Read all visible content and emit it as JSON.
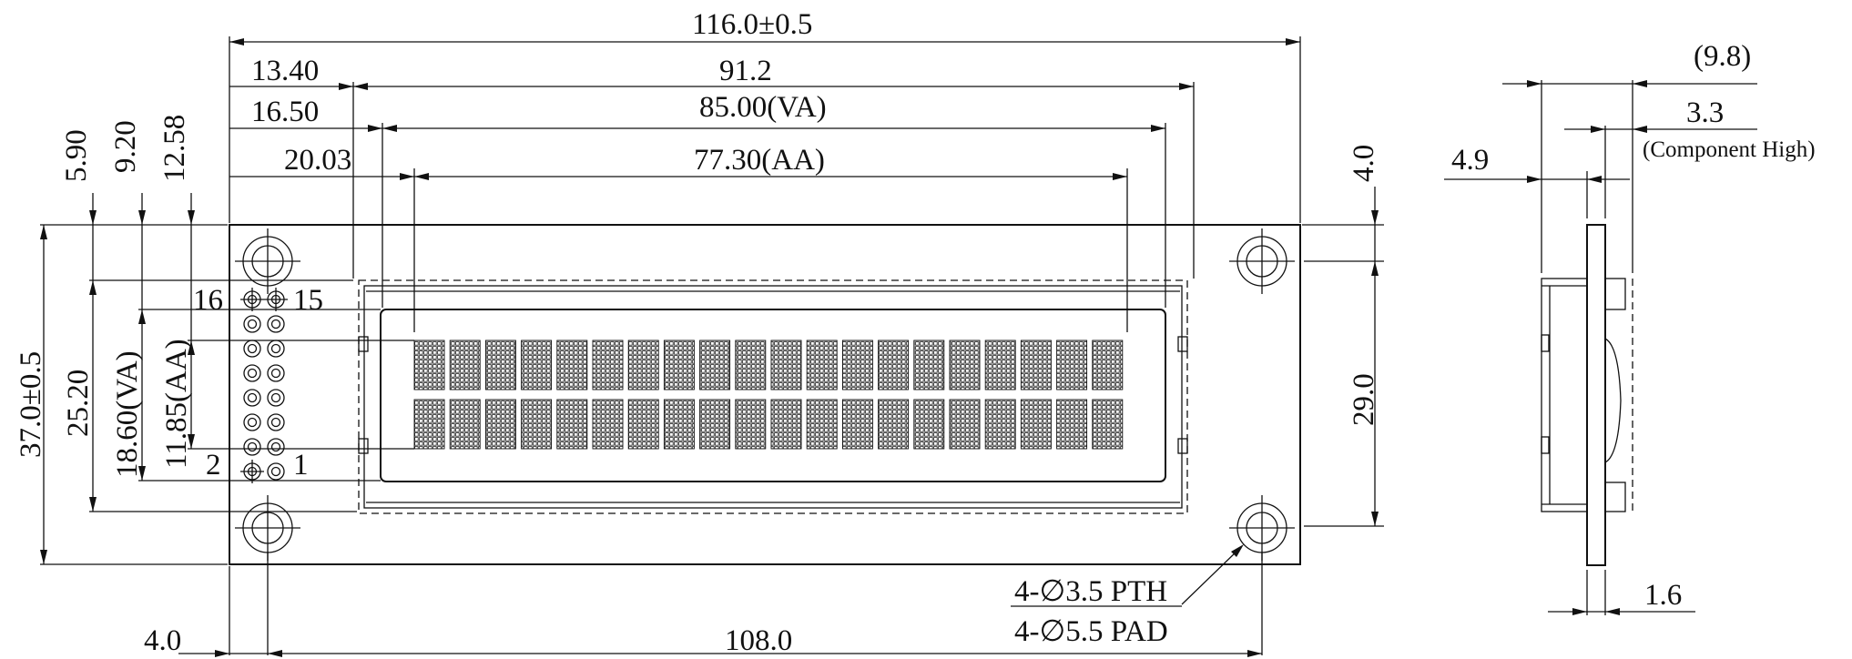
{
  "dimensions": {
    "overall_width": "116.0±0.5",
    "offset_13_40": "13.40",
    "width_91_2": "91.2",
    "offset_16_50": "16.50",
    "viewing_area_width": "85.00(VA)",
    "offset_20_03": "20.03",
    "active_area_width": "77.30(AA)",
    "mount_hole_pitch": "108.0",
    "left_edge_offset": "4.0",
    "top_edge_offset": "4.0",
    "height_29_0": "29.0",
    "overall_height": "37.0±0.5",
    "height_25_20": "25.20",
    "viewing_area_height": "18.60(VA)",
    "active_area_height": "11.85(AA)",
    "offset_5_90": "5.90",
    "offset_9_20": "9.20",
    "offset_12_58": "12.58"
  },
  "side_view": {
    "total_thickness": "(9.8)",
    "component_height": "3.3",
    "component_height_note": "(Component High)",
    "bezel_thickness": "4.9",
    "pcb_thickness": "1.6"
  },
  "pins": {
    "pin_16": "16",
    "pin_15": "15",
    "pin_2": "2",
    "pin_1": "1"
  },
  "holes": {
    "pth_note": "4-∅3.5 PTH",
    "pad_note": "4-∅5.5 PAD"
  },
  "display": {
    "columns": 20,
    "rows": 2
  }
}
